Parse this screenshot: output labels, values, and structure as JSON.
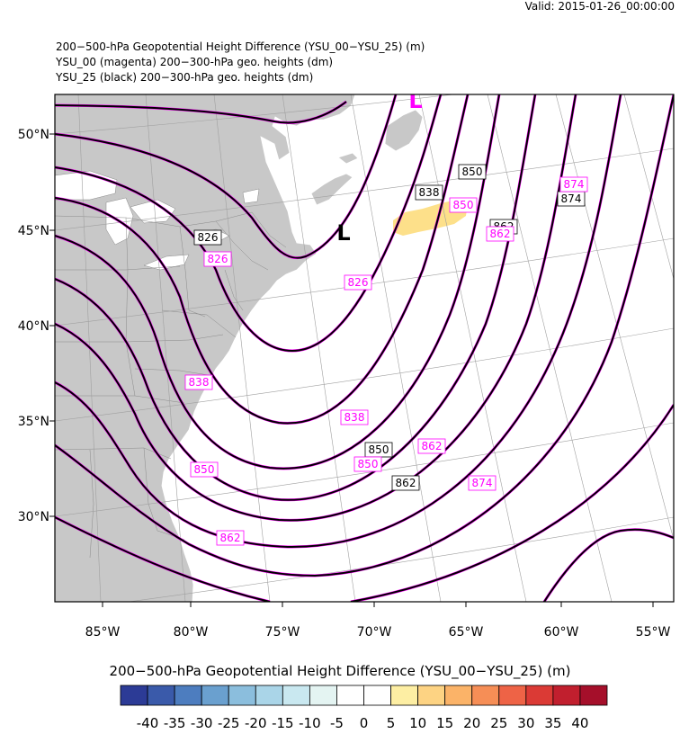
{
  "header": {
    "valid": "Valid: 2015-01-26_00:00:00",
    "title_1": "200−500-hPa Geopotential Height Difference (YSU_00−YSU_25)   (m)",
    "title_2": "YSU_00 (magenta) 200−300-hPa geo. heights   (dm)",
    "title_3": "YSU_25 (black) 200−300-hPa geo. heights   (dm)"
  },
  "map": {
    "lon_labels": [
      "85°W",
      "80°W",
      "75°W",
      "70°W",
      "65°W",
      "60°W",
      "55°W"
    ],
    "lat_labels": [
      "50°N",
      "45°N",
      "40°N",
      "35°N",
      "30°N"
    ],
    "low_marker_magenta": "L",
    "low_marker_black": "L",
    "contour_labels_black": [
      {
        "text": "826"
      },
      {
        "text": "838"
      },
      {
        "text": "850"
      },
      {
        "text": "850"
      },
      {
        "text": "862"
      },
      {
        "text": "862"
      },
      {
        "text": "874"
      }
    ],
    "contour_labels_magenta": [
      {
        "text": "826"
      },
      {
        "text": "826"
      },
      {
        "text": "838"
      },
      {
        "text": "838"
      },
      {
        "text": "850"
      },
      {
        "text": "850"
      },
      {
        "text": "850"
      },
      {
        "text": "862"
      },
      {
        "text": "862"
      },
      {
        "text": "862"
      },
      {
        "text": "874"
      },
      {
        "text": "874"
      }
    ],
    "colors": {
      "land": "#c8c8c8",
      "ocean": "#ffffff",
      "ysu_00_contours": "#ff00ff",
      "ysu_25_contours": "#000000",
      "positive_anomaly": "#fde08a"
    }
  },
  "colorbar": {
    "title": "200−500-hPa Geopotential Height Difference (YSU_00−YSU_25)  (m)",
    "tick_labels": [
      "-40",
      "-35",
      "-30",
      "-25",
      "-20",
      "-15",
      "-10",
      "-5",
      "0",
      "5",
      "10",
      "15",
      "20",
      "25",
      "30",
      "35",
      "40"
    ],
    "colors": [
      "#2c3b96",
      "#3a5aaa",
      "#4d7dbf",
      "#6aa0cf",
      "#8bbedd",
      "#aad5e8",
      "#c9e8f0",
      "#e4f4f2",
      "#ffffff",
      "#ffffff",
      "#fdeea3",
      "#fdd383",
      "#fbb368",
      "#f68e56",
      "#ee6346",
      "#db3a35",
      "#c11f2e",
      "#a50f2a"
    ]
  }
}
